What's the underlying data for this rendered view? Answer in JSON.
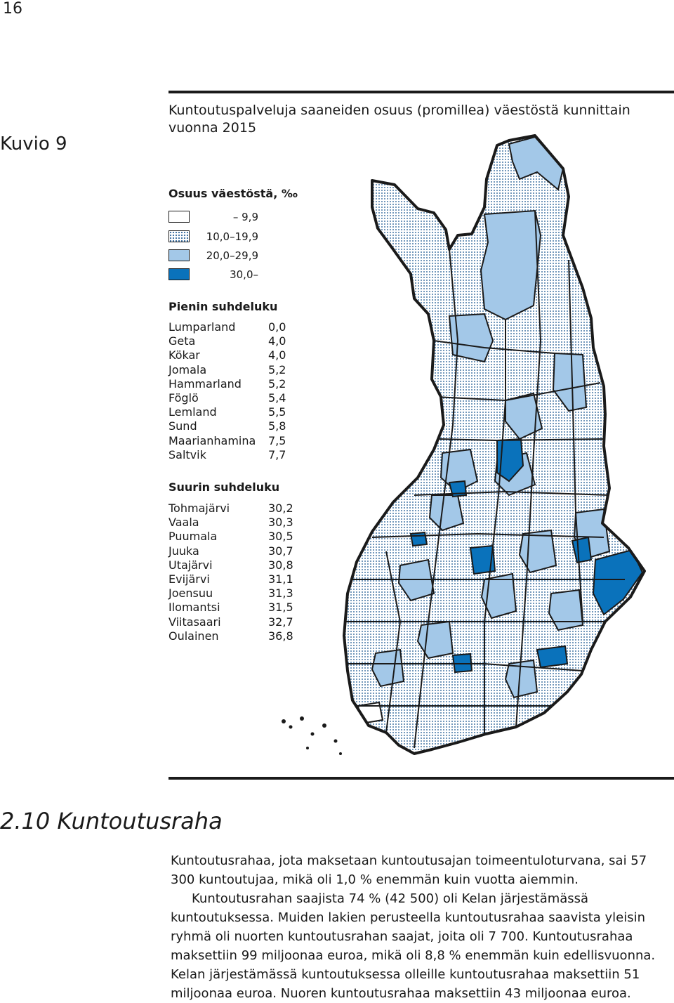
{
  "page_number": "16",
  "figure": {
    "label": "Kuvio 9",
    "title": "Kuntoutuspalveluja saaneiden osuus (promillea) väestöstä kunnittain vuonna 2015"
  },
  "legend": {
    "title": "Osuus väestöstä, ‰",
    "classes": [
      {
        "label": "– 9,9",
        "fill": "#ffffff",
        "pattern": "none"
      },
      {
        "label": "10,0–19,9",
        "fill": "#ffffff",
        "pattern": "dots"
      },
      {
        "label": "20,0–29,9",
        "fill": "#a3c8e8",
        "pattern": "none"
      },
      {
        "label": "30,0–",
        "fill": "#0a72bb",
        "pattern": "none"
      }
    ]
  },
  "smallest": {
    "title": "Pienin suhdeluku",
    "rows": [
      {
        "name": "Lumparland",
        "value": "0,0"
      },
      {
        "name": "Geta",
        "value": "4,0"
      },
      {
        "name": "Kökar",
        "value": "4,0"
      },
      {
        "name": "Jomala",
        "value": "5,2"
      },
      {
        "name": "Hammarland",
        "value": "5,2"
      },
      {
        "name": "Föglö",
        "value": "5,4"
      },
      {
        "name": "Lemland",
        "value": "5,5"
      },
      {
        "name": "Sund",
        "value": "5,8"
      },
      {
        "name": "Maarianhamina",
        "value": "7,5"
      },
      {
        "name": "Saltvik",
        "value": "7,7"
      }
    ]
  },
  "largest": {
    "title": "Suurin suhdeluku",
    "rows": [
      {
        "name": "Tohmajärvi",
        "value": "30,2"
      },
      {
        "name": "Vaala",
        "value": "30,3"
      },
      {
        "name": "Puumala",
        "value": "30,5"
      },
      {
        "name": "Juuka",
        "value": "30,7"
      },
      {
        "name": "Utajärvi",
        "value": "30,8"
      },
      {
        "name": "Evijärvi",
        "value": "31,1"
      },
      {
        "name": "Joensuu",
        "value": "31,3"
      },
      {
        "name": "Ilomantsi",
        "value": "31,5"
      },
      {
        "name": "Viitasaari",
        "value": "32,7"
      },
      {
        "name": "Oulainen",
        "value": "36,8"
      }
    ]
  },
  "colors": {
    "low": "#ffffff",
    "medium_dot": "#3b6fa0",
    "high": "#a3c8e8",
    "highest": "#0a72bb",
    "border": "#1a1a1a"
  },
  "section": {
    "title": "2.10 Kuntoutusraha",
    "paragraphs": [
      "Kuntoutusrahaa, jota maksetaan kuntoutusajan toimeentuloturvana, sai 57 300 kuntoutujaa, mikä oli 1,0 % enemmän kuin vuotta aiemmin.",
      "Kuntoutusrahan saajista 74 % (42 500) oli Kelan järjestämässä kuntoutuksessa. Muiden lakien perusteella kuntoutusrahaa saavista yleisin ryhmä oli nuorten kuntoutusrahan saajat, joita oli 7 700. Kuntoutusrahaa maksettiin 99 miljoonaa euroa, mikä oli 8,8 % enemmän kuin edellisvuonna. Kelan järjestämässä kuntoutuksessa olleille kuntoutusrahaa maksettiin 51 miljoonaa euroa. Nuoren kuntoutusrahaa maksettiin 43 miljoonaa euroa."
    ]
  }
}
